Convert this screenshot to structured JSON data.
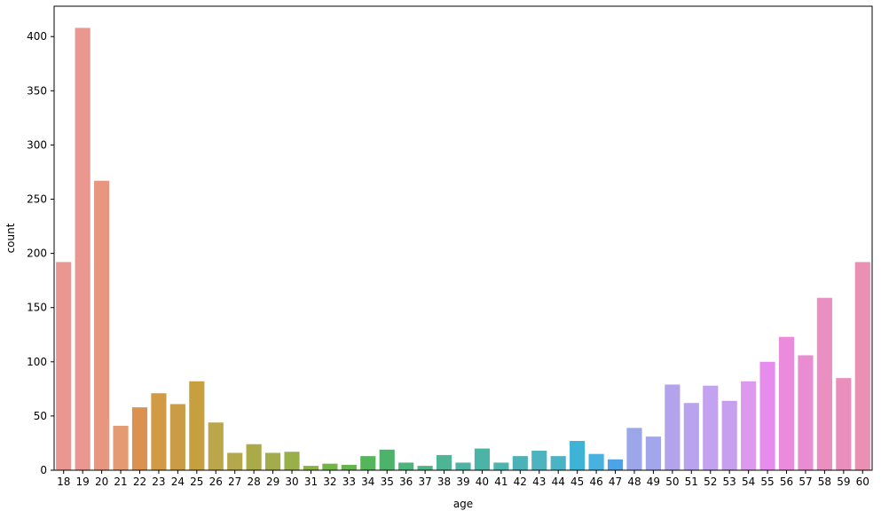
{
  "chart_data": {
    "type": "bar",
    "title": "",
    "xlabel": "age",
    "ylabel": "count",
    "categories": [
      "18",
      "19",
      "20",
      "21",
      "22",
      "23",
      "24",
      "25",
      "26",
      "27",
      "28",
      "29",
      "30",
      "31",
      "32",
      "33",
      "34",
      "35",
      "36",
      "37",
      "38",
      "39",
      "40",
      "41",
      "42",
      "43",
      "44",
      "45",
      "46",
      "47",
      "48",
      "49",
      "50",
      "51",
      "52",
      "53",
      "54",
      "55",
      "56",
      "57",
      "58",
      "59",
      "60"
    ],
    "values": [
      192,
      408,
      267,
      41,
      58,
      71,
      61,
      82,
      44,
      16,
      24,
      16,
      17,
      4,
      6,
      5,
      13,
      19,
      7,
      4,
      14,
      7,
      20,
      7,
      13,
      18,
      13,
      27,
      15,
      10,
      39,
      31,
      79,
      62,
      78,
      64,
      82,
      100,
      123,
      106,
      159,
      85,
      192
    ],
    "colors": [
      "#ea9691",
      "#ea9691",
      "#e7977f",
      "#e49a72",
      "#db9250",
      "#d09b44",
      "#c99c45",
      "#c6a03f",
      "#bba64a",
      "#b4a74c",
      "#aaab48",
      "#a3ac4a",
      "#98af4a",
      "#88b343",
      "#71b547",
      "#66b44c",
      "#55b55b",
      "#4db36b",
      "#4db57a",
      "#4db584",
      "#4db494",
      "#4db3a3",
      "#4cb3a7",
      "#4db5b0",
      "#4bb2b7",
      "#4db4bf",
      "#4bb4c4",
      "#3fb3d7",
      "#49b1e0",
      "#4ba4e6",
      "#9ba7e8",
      "#a2a6ea",
      "#b3a3ed",
      "#b9a3ee",
      "#c3a2ef",
      "#c6a0ef",
      "#dd99ee",
      "#e68ced",
      "#ea8bdb",
      "#e98dd2",
      "#ea8fc2",
      "#ea8ebd",
      "#ea91b3"
    ],
    "ylim": [
      0,
      428
    ],
    "yticks": [
      0,
      50,
      100,
      150,
      200,
      250,
      300,
      350,
      400
    ],
    "grid": false
  }
}
